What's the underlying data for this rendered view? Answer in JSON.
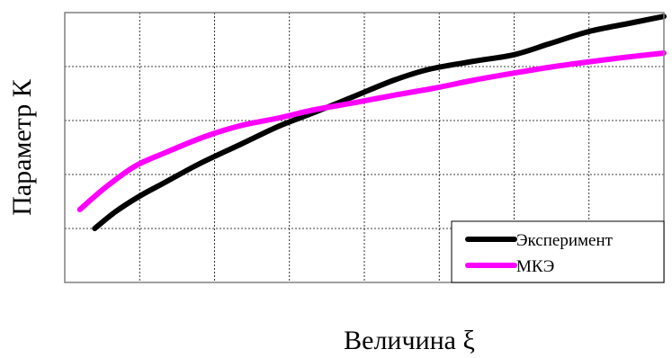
{
  "chart_data": {
    "type": "line",
    "xlabel": "Величина ξ",
    "ylabel": "Параметр К",
    "xlim": [
      0,
      12
    ],
    "ylim": [
      0,
      5
    ],
    "grid": true,
    "tick_labels_shown": false,
    "legend_position": "bottom-right",
    "series": [
      {
        "name": "Эксперимент",
        "color": "#000000",
        "x": [
          0.6,
          1.0,
          1.5,
          2.0,
          2.7,
          3.5,
          4.3,
          5.0,
          5.8,
          6.6,
          7.3,
          8.2,
          9.0,
          9.7,
          10.5,
          11.3,
          12.0
        ],
        "y": [
          1.0,
          1.3,
          1.6,
          1.85,
          2.2,
          2.55,
          2.9,
          3.15,
          3.45,
          3.75,
          3.95,
          4.1,
          4.22,
          4.42,
          4.65,
          4.8,
          4.93
        ]
      },
      {
        "name": "МКЭ",
        "color": "#ff00ff",
        "x": [
          0.3,
          0.8,
          1.4,
          2.0,
          2.8,
          3.5,
          4.3,
          5.0,
          5.8,
          6.6,
          7.4,
          8.2,
          9.0,
          9.8,
          10.6,
          11.3,
          12.0
        ],
        "y": [
          1.35,
          1.75,
          2.15,
          2.4,
          2.7,
          2.9,
          3.05,
          3.2,
          3.33,
          3.47,
          3.6,
          3.75,
          3.88,
          4.0,
          4.1,
          4.18,
          4.25
        ]
      }
    ]
  }
}
